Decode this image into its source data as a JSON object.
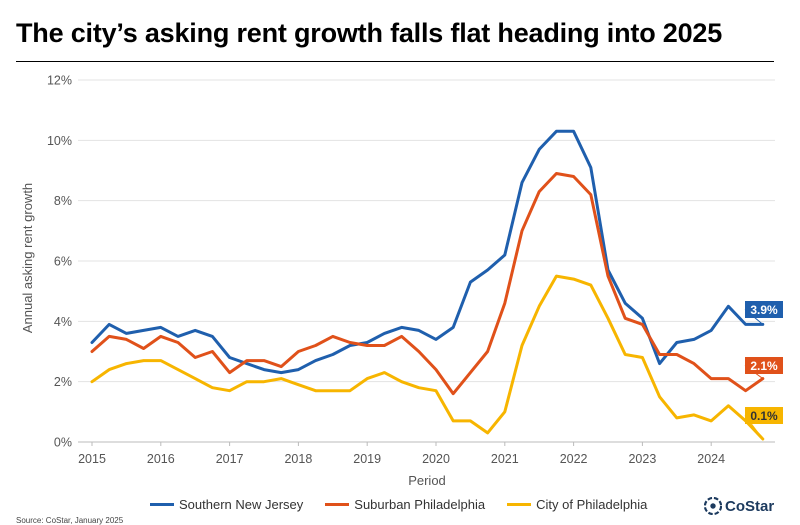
{
  "title": "The city’s asking rent growth falls flat heading into 2025",
  "source": "Source: CoStar, January 2025",
  "brand": "CoStar",
  "colors": {
    "southern_nj": "#1f5fad",
    "suburban_phl": "#e0511a",
    "city_phl": "#f7b500"
  },
  "chart_data": {
    "type": "line",
    "xlabel": "Period",
    "ylabel": "Annual asking rent growth",
    "ylim": [
      0,
      12
    ],
    "y_ticks": [
      "0%",
      "2%",
      "4%",
      "6%",
      "8%",
      "10%",
      "12%"
    ],
    "x_ticks": [
      "2015",
      "2016",
      "2017",
      "2018",
      "2019",
      "2020",
      "2021",
      "2022",
      "2023",
      "2024"
    ],
    "grid": "horizontal",
    "legend": "bottom",
    "x": [
      "2015Q1",
      "2015Q2",
      "2015Q3",
      "2015Q4",
      "2016Q1",
      "2016Q2",
      "2016Q3",
      "2016Q4",
      "2017Q1",
      "2017Q2",
      "2017Q3",
      "2017Q4",
      "2018Q1",
      "2018Q2",
      "2018Q3",
      "2018Q4",
      "2019Q1",
      "2019Q2",
      "2019Q3",
      "2019Q4",
      "2020Q1",
      "2020Q2",
      "2020Q3",
      "2020Q4",
      "2021Q1",
      "2021Q2",
      "2021Q3",
      "2021Q4",
      "2022Q1",
      "2022Q2",
      "2022Q3",
      "2022Q4",
      "2023Q1",
      "2023Q2",
      "2023Q3",
      "2023Q4",
      "2024Q1",
      "2024Q2",
      "2024Q3",
      "2024Q4"
    ],
    "series": [
      {
        "name": "Southern New Jersey",
        "color": "#1f5fad",
        "end_label": "3.9%",
        "values": [
          3.3,
          3.9,
          3.6,
          3.7,
          3.8,
          3.5,
          3.7,
          3.5,
          2.8,
          2.6,
          2.4,
          2.3,
          2.4,
          2.7,
          2.9,
          3.2,
          3.3,
          3.6,
          3.8,
          3.7,
          3.4,
          3.8,
          5.3,
          5.7,
          6.2,
          8.6,
          9.7,
          10.3,
          10.3,
          9.1,
          5.7,
          4.6,
          4.1,
          2.6,
          3.3,
          3.4,
          3.7,
          4.5,
          3.9,
          3.9
        ]
      },
      {
        "name": "Suburban Philadelphia",
        "color": "#e0511a",
        "end_label": "2.1%",
        "values": [
          3.0,
          3.5,
          3.4,
          3.1,
          3.5,
          3.3,
          2.8,
          3.0,
          2.3,
          2.7,
          2.7,
          2.5,
          3.0,
          3.2,
          3.5,
          3.3,
          3.2,
          3.2,
          3.5,
          3.0,
          2.4,
          1.6,
          2.3,
          3.0,
          4.6,
          7.0,
          8.3,
          8.9,
          8.8,
          8.2,
          5.5,
          4.1,
          3.9,
          2.9,
          2.9,
          2.6,
          2.1,
          2.1,
          1.7,
          2.1
        ]
      },
      {
        "name": "City of Philadelphia",
        "color": "#f7b500",
        "end_label": "0.1%",
        "values": [
          2.0,
          2.4,
          2.6,
          2.7,
          2.7,
          2.4,
          2.1,
          1.8,
          1.7,
          2.0,
          2.0,
          2.1,
          1.9,
          1.7,
          1.7,
          1.7,
          2.1,
          2.3,
          2.0,
          1.8,
          1.7,
          0.7,
          0.7,
          0.3,
          1.0,
          3.2,
          4.5,
          5.5,
          5.4,
          5.2,
          4.1,
          2.9,
          2.8,
          1.5,
          0.8,
          0.9,
          0.7,
          1.2,
          0.7,
          0.1
        ]
      }
    ]
  }
}
